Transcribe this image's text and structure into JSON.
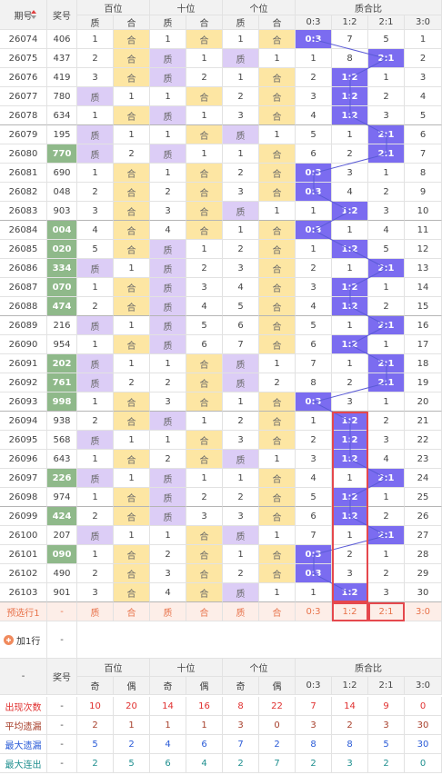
{
  "header": {
    "period": "期号",
    "number": "奖号",
    "groups": [
      "百位",
      "十位",
      "个位",
      "质合比"
    ],
    "sub": [
      "质",
      "合",
      "质",
      "合",
      "质",
      "合",
      "0:3",
      "1:2",
      "2:1",
      "3:0"
    ]
  },
  "rows": [
    {
      "c": [
        "26074",
        "406",
        "1",
        "合",
        "1",
        "合",
        "1",
        "合",
        "0:3",
        "7",
        "5",
        "1"
      ],
      "hl": false
    },
    {
      "c": [
        "26075",
        "437",
        "2",
        "合",
        "质",
        "1",
        "质",
        "1",
        "1",
        "8",
        "2:1",
        "2"
      ],
      "hl": false
    },
    {
      "c": [
        "26076",
        "419",
        "3",
        "合",
        "质",
        "2",
        "1",
        "合",
        "2",
        "1:2",
        "1",
        "3"
      ],
      "hl": false
    },
    {
      "c": [
        "26077",
        "780",
        "质",
        "1",
        "1",
        "合",
        "2",
        "合",
        "3",
        "1:2",
        "2",
        "4"
      ],
      "hl": false
    },
    {
      "c": [
        "26078",
        "634",
        "1",
        "合",
        "质",
        "1",
        "3",
        "合",
        "4",
        "1:2",
        "3",
        "5"
      ],
      "hl": false
    },
    {
      "c": [
        "26079",
        "195",
        "质",
        "1",
        "1",
        "合",
        "质",
        "1",
        "5",
        "1",
        "2:1",
        "6"
      ],
      "hl": false
    },
    {
      "c": [
        "26080",
        "770",
        "质",
        "2",
        "质",
        "1",
        "1",
        "合",
        "6",
        "2",
        "2:1",
        "7"
      ],
      "hl": true
    },
    {
      "c": [
        "26081",
        "690",
        "1",
        "合",
        "1",
        "合",
        "2",
        "合",
        "0:3",
        "3",
        "1",
        "8"
      ],
      "hl": false
    },
    {
      "c": [
        "26082",
        "048",
        "2",
        "合",
        "2",
        "合",
        "3",
        "合",
        "0:3",
        "4",
        "2",
        "9"
      ],
      "hl": false
    },
    {
      "c": [
        "26083",
        "903",
        "3",
        "合",
        "3",
        "合",
        "质",
        "1",
        "1",
        "1:2",
        "3",
        "10"
      ],
      "hl": false
    },
    {
      "c": [
        "26084",
        "004",
        "4",
        "合",
        "4",
        "合",
        "1",
        "合",
        "0:3",
        "1",
        "4",
        "11"
      ],
      "hl": true
    },
    {
      "c": [
        "26085",
        "020",
        "5",
        "合",
        "质",
        "1",
        "2",
        "合",
        "1",
        "1:2",
        "5",
        "12"
      ],
      "hl": true
    },
    {
      "c": [
        "26086",
        "334",
        "质",
        "1",
        "质",
        "2",
        "3",
        "合",
        "2",
        "1",
        "2:1",
        "13"
      ],
      "hl": true
    },
    {
      "c": [
        "26087",
        "070",
        "1",
        "合",
        "质",
        "3",
        "4",
        "合",
        "3",
        "1:2",
        "1",
        "14"
      ],
      "hl": true
    },
    {
      "c": [
        "26088",
        "474",
        "2",
        "合",
        "质",
        "4",
        "5",
        "合",
        "4",
        "1:2",
        "2",
        "15"
      ],
      "hl": true
    },
    {
      "c": [
        "26089",
        "216",
        "质",
        "1",
        "质",
        "5",
        "6",
        "合",
        "5",
        "1",
        "2:1",
        "16"
      ],
      "hl": false
    },
    {
      "c": [
        "26090",
        "954",
        "1",
        "合",
        "质",
        "6",
        "7",
        "合",
        "6",
        "1:2",
        "1",
        "17"
      ],
      "hl": false
    },
    {
      "c": [
        "26091",
        "202",
        "质",
        "1",
        "1",
        "合",
        "质",
        "1",
        "7",
        "1",
        "2:1",
        "18"
      ],
      "hl": true
    },
    {
      "c": [
        "26092",
        "761",
        "质",
        "2",
        "2",
        "合",
        "质",
        "2",
        "8",
        "2",
        "2:1",
        "19"
      ],
      "hl": true
    },
    {
      "c": [
        "26093",
        "998",
        "1",
        "合",
        "3",
        "合",
        "1",
        "合",
        "0:3",
        "3",
        "1",
        "20"
      ],
      "hl": true
    },
    {
      "c": [
        "26094",
        "938",
        "2",
        "合",
        "质",
        "1",
        "2",
        "合",
        "1",
        "1:2",
        "2",
        "21"
      ],
      "hl": false
    },
    {
      "c": [
        "26095",
        "568",
        "质",
        "1",
        "1",
        "合",
        "3",
        "合",
        "2",
        "1:2",
        "3",
        "22"
      ],
      "hl": false
    },
    {
      "c": [
        "26096",
        "643",
        "1",
        "合",
        "2",
        "合",
        "质",
        "1",
        "3",
        "1:2",
        "4",
        "23"
      ],
      "hl": false
    },
    {
      "c": [
        "26097",
        "226",
        "质",
        "1",
        "质",
        "1",
        "1",
        "合",
        "4",
        "1",
        "2:1",
        "24"
      ],
      "hl": true
    },
    {
      "c": [
        "26098",
        "974",
        "1",
        "合",
        "质",
        "2",
        "2",
        "合",
        "5",
        "1:2",
        "1",
        "25"
      ],
      "hl": false
    },
    {
      "c": [
        "26099",
        "424",
        "2",
        "合",
        "质",
        "3",
        "3",
        "合",
        "6",
        "1:2",
        "2",
        "26"
      ],
      "hl": true
    },
    {
      "c": [
        "26100",
        "207",
        "质",
        "1",
        "1",
        "合",
        "质",
        "1",
        "7",
        "1",
        "2:1",
        "27"
      ],
      "hl": false
    },
    {
      "c": [
        "26101",
        "090",
        "1",
        "合",
        "2",
        "合",
        "1",
        "合",
        "0:3",
        "2",
        "1",
        "28"
      ],
      "hl": true
    },
    {
      "c": [
        "26102",
        "490",
        "2",
        "合",
        "3",
        "合",
        "2",
        "合",
        "0:3",
        "3",
        "2",
        "29"
      ],
      "hl": false
    },
    {
      "c": [
        "26103",
        "901",
        "3",
        "合",
        "4",
        "合",
        "质",
        "1",
        "1",
        "1:2",
        "3",
        "30"
      ],
      "hl": false
    }
  ],
  "preselect": {
    "c": [
      "预选行1",
      "-",
      "质",
      "合",
      "质",
      "合",
      "质",
      "合",
      "0:3",
      "1:2",
      "2:1",
      "3:0"
    ]
  },
  "add_row": {
    "label": "加1行",
    "value": "-"
  },
  "stats_header": {
    "first": "-",
    "number": "奖号",
    "groups": [
      "百位",
      "十位",
      "个位",
      "质合比"
    ],
    "sub": [
      "奇",
      "偶",
      "奇",
      "偶",
      "奇",
      "偶",
      "0:3",
      "1:2",
      "2:1",
      "3:0"
    ]
  },
  "stats": [
    {
      "c": [
        "出现次数",
        "-",
        "10",
        "20",
        "14",
        "16",
        "8",
        "22",
        "7",
        "14",
        "9",
        "0"
      ],
      "color": "#e0302f"
    },
    {
      "c": [
        "平均遗漏",
        "-",
        "2",
        "1",
        "1",
        "1",
        "3",
        "0",
        "3",
        "2",
        "3",
        "30"
      ],
      "color": "#a8402c"
    },
    {
      "c": [
        "最大遗漏",
        "-",
        "5",
        "2",
        "4",
        "6",
        "7",
        "2",
        "8",
        "8",
        "5",
        "30"
      ],
      "color": "#2a5bd7"
    },
    {
      "c": [
        "最大连出",
        "-",
        "2",
        "5",
        "6",
        "4",
        "2",
        "7",
        "2",
        "3",
        "2",
        "0"
      ],
      "color": "#1f8f8f"
    }
  ]
}
